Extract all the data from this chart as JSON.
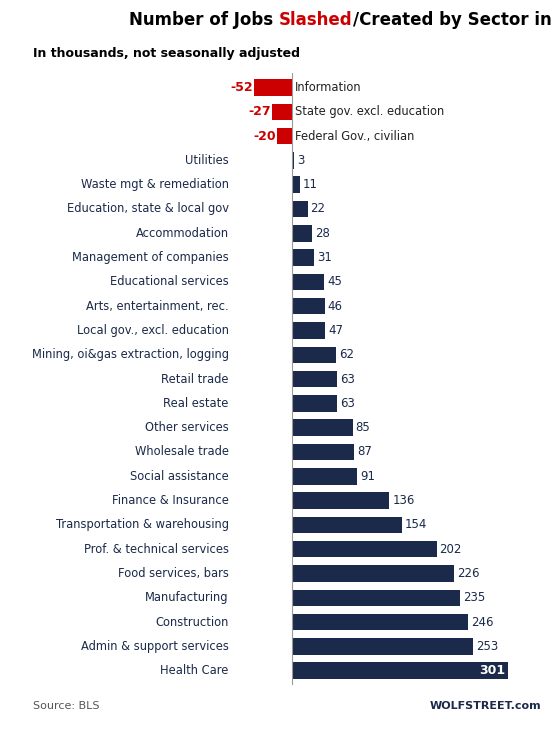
{
  "categories": [
    "Health Care",
    "Admin & support services",
    "Construction",
    "Manufacturing",
    "Food services, bars",
    "Prof. & technical services",
    "Transportation & warehousing",
    "Finance & Insurance",
    "Social assistance",
    "Wholesale trade",
    "Other services",
    "Real estate",
    "Retail trade",
    "Mining, oi&gas extraction, logging",
    "Local gov., excl. education",
    "Arts, entertainment, rec.",
    "Educational services",
    "Management of companies",
    "Accommodation",
    "Education, state & local gov",
    "Waste mgt & remediation",
    "Utilities",
    "Federal Gov., civilian",
    "State gov. excl. education",
    "Information"
  ],
  "values": [
    301,
    253,
    246,
    235,
    226,
    202,
    154,
    136,
    91,
    87,
    85,
    63,
    63,
    62,
    47,
    46,
    45,
    31,
    28,
    22,
    11,
    3,
    -20,
    -27,
    -52
  ],
  "bar_color_positive": "#1B2A4A",
  "bar_color_negative": "#CC0000",
  "subtitle": "In thousands, not seasonally adjusted",
  "source_left": "Source: BLS",
  "source_right": "WOLFSTREET.com",
  "label_color_positive": "#1B2A4A",
  "label_color_negative": "#CC0000",
  "health_care_label_color": "#ffffff",
  "fig_width": 5.58,
  "fig_height": 7.29,
  "dpi": 100,
  "background_color": "#ffffff"
}
